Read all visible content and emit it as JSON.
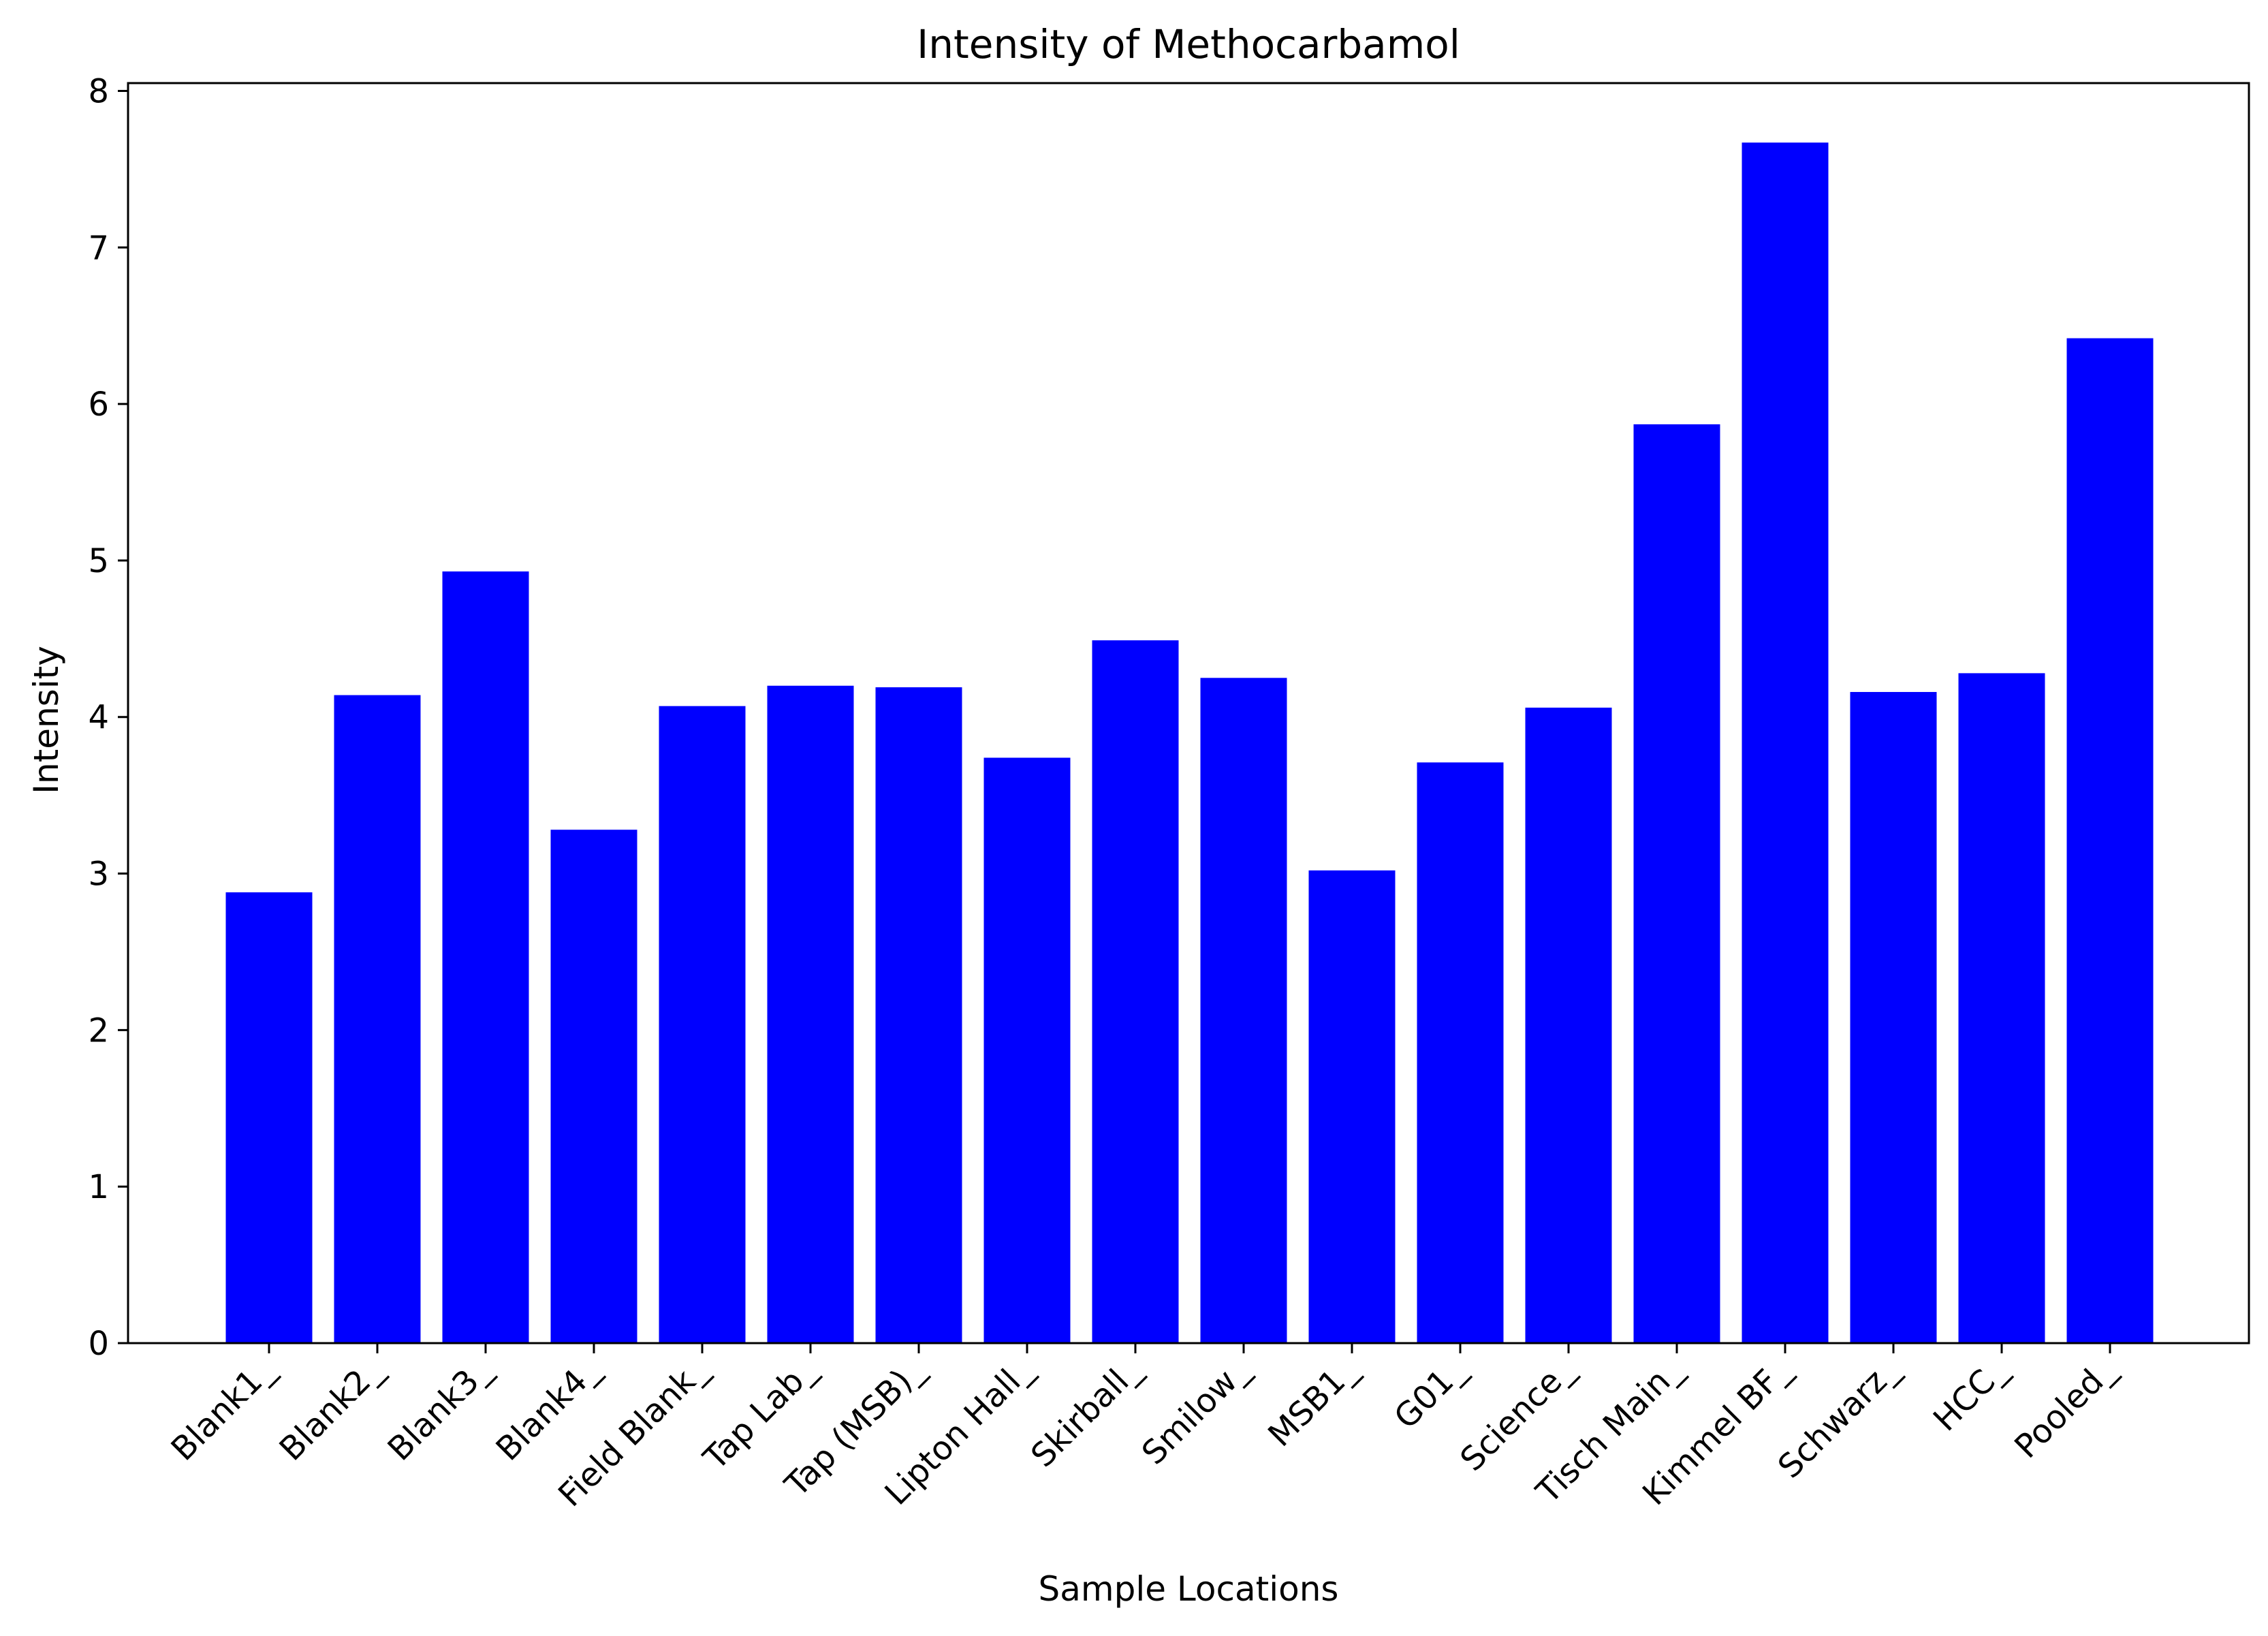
{
  "chart_data": {
    "type": "bar",
    "title": "Intensity of Methocarbamol",
    "xlabel": "Sample Locations",
    "ylabel": "Intensity",
    "categories": [
      "Blank1_",
      "Blank2_",
      "Blank3_",
      "Blank4_",
      "Field Blank_",
      "Tap Lab_",
      "Tap (MSB)_",
      "Lipton Hall_",
      "Skirball_",
      "Smilow_",
      "MSB1_",
      "G01_",
      "Science_",
      "Tisch Main_",
      "Kimmel BF_",
      "Schwarz_",
      "HCC_",
      "Pooled_"
    ],
    "values": [
      2.88,
      4.14,
      4.93,
      3.28,
      4.07,
      4.2,
      4.19,
      3.74,
      4.49,
      4.25,
      3.02,
      3.71,
      4.06,
      5.87,
      7.67,
      4.16,
      4.28,
      6.42
    ],
    "ylim": [
      0,
      8.05
    ],
    "yticks": [
      0,
      1,
      2,
      3,
      4,
      5,
      6,
      7,
      8
    ],
    "bar_color": "#0000ff",
    "grid": false,
    "legend": "none"
  }
}
